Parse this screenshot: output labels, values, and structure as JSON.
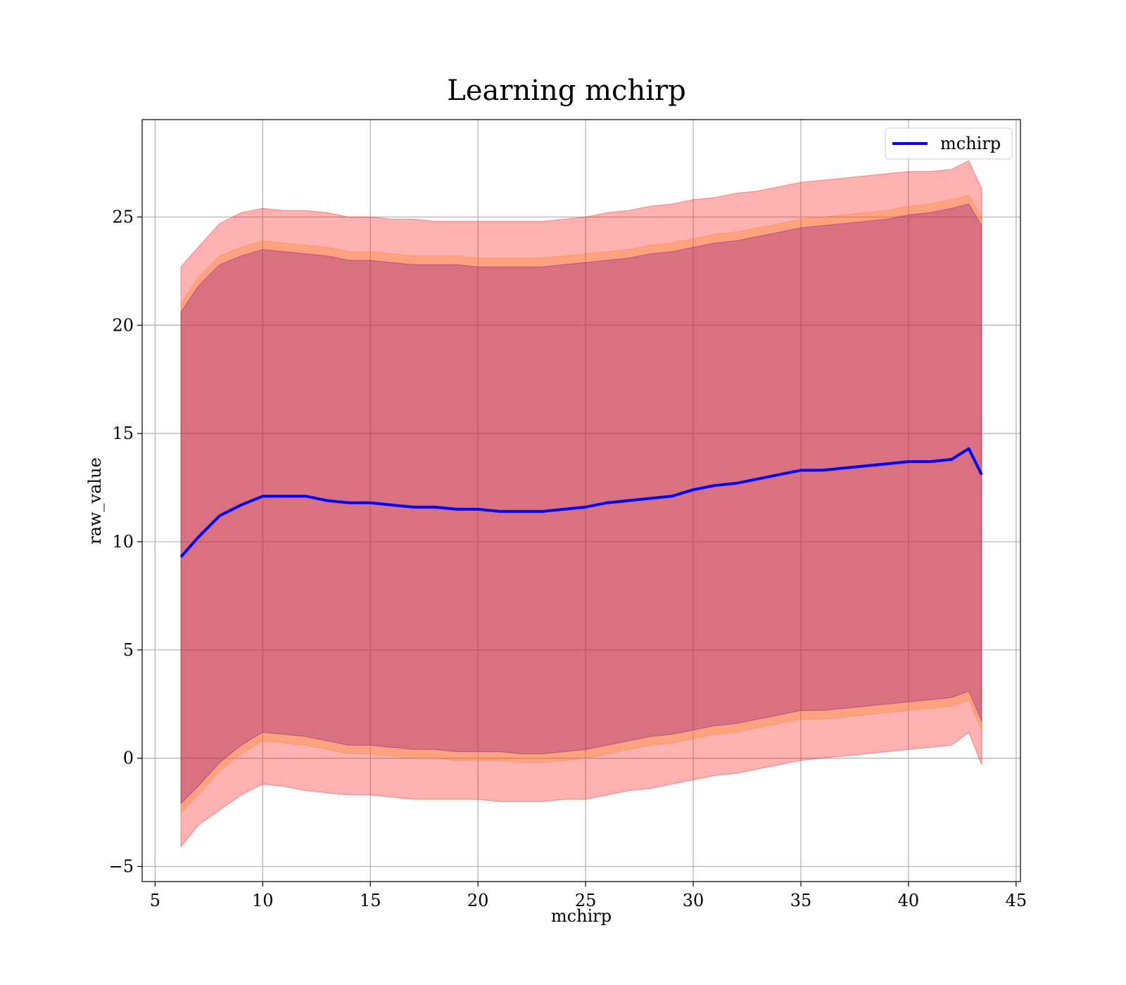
{
  "chart_data": {
    "type": "area",
    "title": "Learning mchirp",
    "xlabel": "mchirp",
    "ylabel": "raw_value",
    "xlim": [
      4.4,
      45.2
    ],
    "ylim": [
      -5.7,
      29.5
    ],
    "xticks": [
      5,
      10,
      15,
      20,
      25,
      30,
      35,
      40,
      45
    ],
    "yticks": [
      -5,
      0,
      5,
      10,
      15,
      20,
      25
    ],
    "xtick_labels": [
      "5",
      "10",
      "15",
      "20",
      "25",
      "30",
      "35",
      "40",
      "45"
    ],
    "ytick_labels": [
      "−5",
      "0",
      "5",
      "10",
      "15",
      "20",
      "25"
    ],
    "grid": true,
    "legend": {
      "position": "top-right",
      "entries": [
        "mchirp"
      ]
    },
    "x": [
      6.2,
      7,
      8,
      9,
      10,
      11,
      12,
      13,
      14,
      15,
      16,
      17,
      18,
      19,
      20,
      21,
      22,
      23,
      24,
      25,
      26,
      27,
      28,
      29,
      30,
      31,
      32,
      33,
      34,
      35,
      36,
      37,
      38,
      39,
      40,
      41,
      42,
      42.8,
      43.4
    ],
    "series": [
      {
        "name": "mchirp",
        "role": "line",
        "color": "#0000ff",
        "values": [
          9.3,
          10.2,
          11.2,
          11.7,
          12.1,
          12.1,
          12.1,
          11.9,
          11.8,
          11.8,
          11.7,
          11.6,
          11.6,
          11.5,
          11.5,
          11.4,
          11.4,
          11.4,
          11.5,
          11.6,
          11.8,
          11.9,
          12.0,
          12.1,
          12.4,
          12.6,
          12.7,
          12.9,
          13.1,
          13.3,
          13.3,
          13.4,
          13.5,
          13.6,
          13.7,
          13.7,
          13.8,
          14.3,
          13.1
        ]
      },
      {
        "role": "band-outer",
        "color": "#ff0000",
        "opacity": 0.3,
        "upper": [
          22.7,
          23.6,
          24.7,
          25.2,
          25.4,
          25.3,
          25.3,
          25.2,
          25.0,
          25.0,
          24.9,
          24.9,
          24.8,
          24.8,
          24.8,
          24.8,
          24.8,
          24.8,
          24.9,
          25.0,
          25.2,
          25.3,
          25.5,
          25.6,
          25.8,
          25.9,
          26.1,
          26.2,
          26.4,
          26.6,
          26.7,
          26.8,
          26.9,
          27.0,
          27.1,
          27.1,
          27.2,
          27.6,
          26.3
        ],
        "lower": [
          -4.1,
          -3.1,
          -2.4,
          -1.7,
          -1.2,
          -1.3,
          -1.5,
          -1.6,
          -1.7,
          -1.7,
          -1.8,
          -1.9,
          -1.9,
          -1.9,
          -1.9,
          -2.0,
          -2.0,
          -2.0,
          -1.9,
          -1.9,
          -1.7,
          -1.5,
          -1.4,
          -1.2,
          -1.0,
          -0.8,
          -0.7,
          -0.5,
          -0.3,
          -0.1,
          0.0,
          0.1,
          0.2,
          0.3,
          0.4,
          0.5,
          0.6,
          1.2,
          -0.3
        ]
      },
      {
        "role": "band-middle",
        "color": "#ff7f0e",
        "opacity": 0.3,
        "upper": [
          21.0,
          22.2,
          23.2,
          23.6,
          23.9,
          23.8,
          23.7,
          23.6,
          23.4,
          23.4,
          23.3,
          23.2,
          23.2,
          23.2,
          23.1,
          23.1,
          23.1,
          23.1,
          23.2,
          23.3,
          23.4,
          23.5,
          23.7,
          23.8,
          24.0,
          24.2,
          24.3,
          24.5,
          24.7,
          24.9,
          25.0,
          25.1,
          25.2,
          25.3,
          25.5,
          25.6,
          25.8,
          26.0,
          25.0
        ],
        "lower": [
          -2.5,
          -1.7,
          -0.6,
          0.2,
          0.8,
          0.7,
          0.6,
          0.4,
          0.2,
          0.2,
          0.1,
          0.0,
          0.0,
          -0.1,
          -0.1,
          -0.1,
          -0.2,
          -0.2,
          -0.1,
          0.0,
          0.2,
          0.4,
          0.6,
          0.7,
          0.9,
          1.1,
          1.2,
          1.4,
          1.6,
          1.8,
          1.8,
          1.9,
          2.0,
          2.1,
          2.2,
          2.3,
          2.4,
          2.7,
          1.3
        ]
      },
      {
        "role": "band-inner",
        "color": "#800080",
        "opacity": 0.3,
        "upper": [
          20.6,
          21.8,
          22.8,
          23.2,
          23.5,
          23.4,
          23.3,
          23.2,
          23.0,
          23.0,
          22.9,
          22.8,
          22.8,
          22.8,
          22.7,
          22.7,
          22.7,
          22.7,
          22.8,
          22.9,
          23.0,
          23.1,
          23.3,
          23.4,
          23.6,
          23.8,
          23.9,
          24.1,
          24.3,
          24.5,
          24.6,
          24.7,
          24.8,
          24.9,
          25.1,
          25.2,
          25.4,
          25.6,
          24.6
        ],
        "lower": [
          -2.1,
          -1.3,
          -0.2,
          0.6,
          1.2,
          1.1,
          1.0,
          0.8,
          0.6,
          0.6,
          0.5,
          0.4,
          0.4,
          0.3,
          0.3,
          0.3,
          0.2,
          0.2,
          0.3,
          0.4,
          0.6,
          0.8,
          1.0,
          1.1,
          1.3,
          1.5,
          1.6,
          1.8,
          2.0,
          2.2,
          2.2,
          2.3,
          2.4,
          2.5,
          2.6,
          2.7,
          2.8,
          3.1,
          1.7
        ]
      }
    ]
  }
}
